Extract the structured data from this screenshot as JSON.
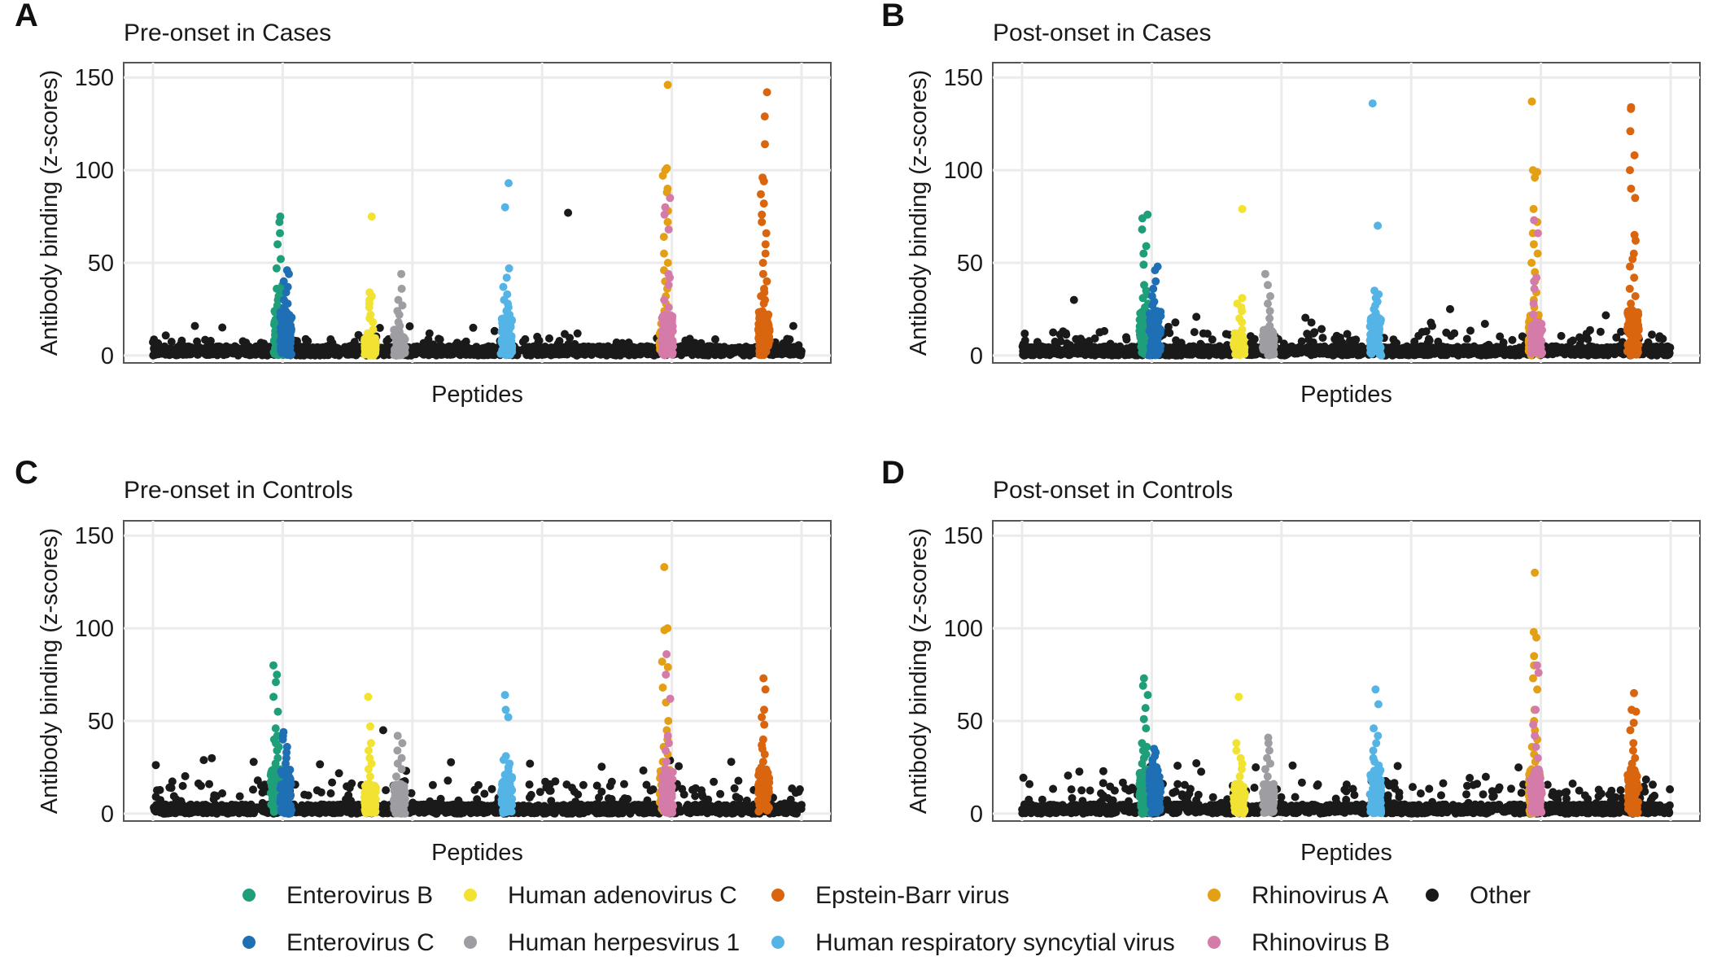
{
  "colors": {
    "Enterovirus B": "#1f9e7a",
    "Enterovirus C": "#1f6fb5",
    "Human adenovirus C": "#f2e232",
    "Human herpesvirus 1": "#9e9ea2",
    "Epstein-Barr virus": "#d9650f",
    "Human respiratory syncytial virus": "#55b4e6",
    "Rhinovirus A": "#e4a014",
    "Rhinovirus B": "#d57ba9",
    "Other": "#1a1a1a"
  },
  "legend": {
    "items": [
      "Enterovirus B",
      "Human adenovirus C",
      "Epstein-Barr virus",
      "Rhinovirus A",
      "Other",
      "Enterovirus C",
      "Human herpesvirus 1",
      "Human respiratory syncytial virus",
      "Rhinovirus B"
    ]
  },
  "chart_data": [
    {
      "panel": "A",
      "type": "scatter",
      "title": "Pre-onset in Cases",
      "xlabel": "Peptides",
      "ylabel": "Antibody binding (z-scores)",
      "ylim": [
        -4,
        158
      ],
      "yticks": [
        0,
        50,
        100,
        150
      ],
      "grid": true,
      "background_max": 16,
      "groups": [
        {
          "virus": "Enterovirus B",
          "position": 0.195,
          "max": 75,
          "values": [
            75,
            72,
            66,
            60,
            52,
            47,
            38,
            36,
            34,
            32,
            30,
            27
          ]
        },
        {
          "virus": "Enterovirus C",
          "position": 0.205,
          "max": 46,
          "values": [
            46,
            44,
            40,
            37,
            34,
            30,
            28,
            26,
            24
          ]
        },
        {
          "virus": "Human adenovirus C",
          "position": 0.335,
          "max": 75,
          "values": [
            75,
            34,
            32,
            30,
            28,
            26,
            22,
            20,
            18,
            14,
            12,
            10
          ]
        },
        {
          "virus": "Human herpesvirus 1",
          "position": 0.38,
          "max": 44,
          "values": [
            44,
            36,
            30,
            27,
            24,
            22,
            18,
            16,
            14
          ]
        },
        {
          "virus": "Human respiratory syncytial virus",
          "position": 0.545,
          "max": 93,
          "values": [
            93,
            80,
            47,
            42,
            37,
            33,
            30,
            28,
            26,
            24,
            22,
            20
          ]
        },
        {
          "virus": "Rhinovirus A",
          "position": 0.79,
          "max": 146,
          "values": [
            146,
            101,
            100,
            97,
            90,
            88,
            78,
            72,
            64,
            55,
            50,
            46,
            40,
            36,
            32,
            28,
            24,
            20
          ]
        },
        {
          "virus": "Rhinovirus B",
          "position": 0.793,
          "max": 85,
          "values": [
            85,
            80,
            76,
            68,
            44,
            42,
            38,
            30,
            26,
            22
          ]
        },
        {
          "virus": "Epstein-Barr virus",
          "position": 0.942,
          "max": 142,
          "values": [
            142,
            129,
            114,
            96,
            94,
            87,
            82,
            76,
            72,
            66,
            60,
            55,
            50,
            44,
            40,
            36,
            34,
            32,
            30,
            28
          ]
        },
        {
          "virus": "Other",
          "position": 0.64,
          "max": 77,
          "values": [
            77
          ]
        }
      ]
    },
    {
      "panel": "B",
      "type": "scatter",
      "title": "Post-onset in Cases",
      "xlabel": "Peptides",
      "ylabel": "Antibody binding (z-scores)",
      "ylim": [
        -4,
        158
      ],
      "yticks": [
        0,
        50,
        100,
        150
      ],
      "grid": true,
      "background_max": 22,
      "groups": [
        {
          "virus": "Enterovirus B",
          "position": 0.19,
          "max": 76,
          "values": [
            76,
            74,
            68,
            59,
            55,
            49,
            38,
            35,
            33,
            31,
            28,
            26
          ]
        },
        {
          "virus": "Enterovirus C",
          "position": 0.205,
          "max": 48,
          "values": [
            48,
            46,
            40,
            36,
            32,
            29,
            27,
            24
          ]
        },
        {
          "virus": "Human adenovirus C",
          "position": 0.335,
          "max": 79,
          "values": [
            79,
            31,
            28,
            26,
            24,
            20,
            18,
            14,
            12
          ]
        },
        {
          "virus": "Human herpesvirus 1",
          "position": 0.38,
          "max": 44,
          "values": [
            44,
            38,
            32,
            28,
            24,
            20,
            16,
            14
          ]
        },
        {
          "virus": "Human respiratory syncytial virus",
          "position": 0.545,
          "max": 136,
          "values": [
            136,
            70,
            35,
            33,
            31,
            29,
            27,
            25,
            23,
            21
          ]
        },
        {
          "virus": "Rhinovirus A",
          "position": 0.79,
          "max": 137,
          "values": [
            137,
            100,
            99,
            96,
            79,
            72,
            66,
            60,
            55,
            50,
            45,
            40,
            34,
            30,
            26,
            22
          ]
        },
        {
          "virus": "Rhinovirus B",
          "position": 0.793,
          "max": 73,
          "values": [
            73,
            66,
            42,
            40,
            36,
            28,
            22,
            18
          ]
        },
        {
          "virus": "Epstein-Barr virus",
          "position": 0.942,
          "max": 134,
          "values": [
            134,
            133,
            121,
            108,
            100,
            90,
            85,
            65,
            62,
            55,
            52,
            48,
            42,
            36,
            32,
            28,
            25
          ]
        },
        {
          "virus": "Other",
          "position": 0.08,
          "max": 30,
          "values": [
            30
          ]
        },
        {
          "virus": "Other",
          "position": 0.66,
          "max": 25,
          "values": [
            25
          ]
        }
      ]
    },
    {
      "panel": "C",
      "type": "scatter",
      "title": "Pre-onset in Controls",
      "xlabel": "Peptides",
      "ylabel": "Antibody binding (z-scores)",
      "ylim": [
        -4,
        158
      ],
      "yticks": [
        0,
        50,
        100,
        150
      ],
      "grid": true,
      "background_max": 30,
      "groups": [
        {
          "virus": "Enterovirus B",
          "position": 0.19,
          "max": 80,
          "values": [
            80,
            75,
            71,
            63,
            55,
            46,
            42,
            40,
            38,
            36,
            34,
            30,
            27,
            24
          ]
        },
        {
          "virus": "Enterovirus C",
          "position": 0.205,
          "max": 44,
          "values": [
            44,
            42,
            40,
            36,
            33,
            30,
            27
          ]
        },
        {
          "virus": "Human adenovirus C",
          "position": 0.335,
          "max": 63,
          "values": [
            63,
            47,
            38,
            34,
            30,
            27,
            24,
            20,
            16
          ]
        },
        {
          "virus": "Human herpesvirus 1",
          "position": 0.38,
          "max": 42,
          "values": [
            42,
            38,
            34,
            30,
            27,
            24,
            20,
            16
          ]
        },
        {
          "virus": "Human respiratory syncytial virus",
          "position": 0.545,
          "max": 64,
          "values": [
            64,
            56,
            52,
            31,
            29,
            27,
            25,
            23,
            21
          ]
        },
        {
          "virus": "Rhinovirus A",
          "position": 0.79,
          "max": 133,
          "values": [
            133,
            100,
            99,
            82,
            79,
            68,
            60,
            50,
            45,
            40,
            36,
            32,
            28
          ]
        },
        {
          "virus": "Rhinovirus B",
          "position": 0.793,
          "max": 86,
          "values": [
            86,
            75,
            62,
            42,
            38,
            34,
            28,
            24
          ]
        },
        {
          "virus": "Epstein-Barr virus",
          "position": 0.942,
          "max": 73,
          "values": [
            73,
            67,
            56,
            52,
            48,
            40,
            37,
            35,
            32,
            28,
            25
          ]
        },
        {
          "virus": "Other",
          "position": 0.355,
          "max": 45,
          "values": [
            45
          ]
        }
      ]
    },
    {
      "panel": "D",
      "type": "scatter",
      "title": "Post-onset in Controls",
      "xlabel": "Peptides",
      "ylabel": "Antibody binding (z-scores)",
      "ylim": [
        -4,
        158
      ],
      "yticks": [
        0,
        50,
        100,
        150
      ],
      "grid": true,
      "background_max": 28,
      "groups": [
        {
          "virus": "Enterovirus B",
          "position": 0.19,
          "max": 73,
          "values": [
            73,
            69,
            64,
            57,
            51,
            46,
            38,
            36,
            34,
            32,
            30,
            27
          ]
        },
        {
          "virus": "Enterovirus C",
          "position": 0.205,
          "max": 35,
          "values": [
            35,
            33,
            31,
            29,
            27,
            25
          ]
        },
        {
          "virus": "Human adenovirus C",
          "position": 0.335,
          "max": 63,
          "values": [
            63,
            38,
            34,
            30,
            27,
            24,
            20,
            16
          ]
        },
        {
          "virus": "Human herpesvirus 1",
          "position": 0.38,
          "max": 41,
          "values": [
            41,
            38,
            34,
            30,
            27,
            24,
            20,
            16
          ]
        },
        {
          "virus": "Human respiratory syncytial virus",
          "position": 0.545,
          "max": 67,
          "values": [
            67,
            59,
            46,
            42,
            38,
            34,
            30,
            28,
            26,
            24
          ]
        },
        {
          "virus": "Rhinovirus A",
          "position": 0.79,
          "max": 130,
          "values": [
            130,
            98,
            95,
            85,
            80,
            73,
            67,
            56,
            50,
            45,
            40,
            36,
            32,
            28
          ]
        },
        {
          "virus": "Rhinovirus B",
          "position": 0.793,
          "max": 80,
          "values": [
            80,
            76,
            56,
            48,
            42,
            36,
            30,
            24
          ]
        },
        {
          "virus": "Epstein-Barr virus",
          "position": 0.942,
          "max": 65,
          "values": [
            65,
            56,
            55,
            49,
            45,
            38,
            34,
            30,
            27,
            24
          ]
        }
      ]
    }
  ]
}
